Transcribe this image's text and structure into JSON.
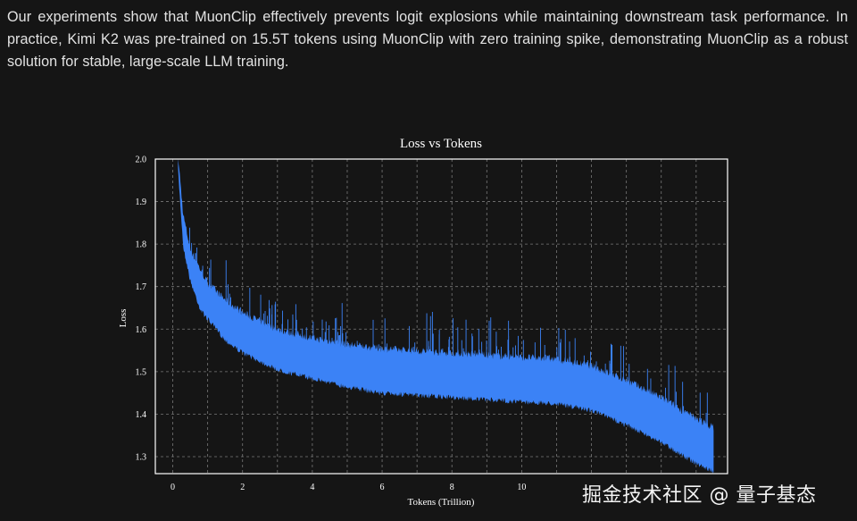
{
  "text": {
    "paragraph": "Our experiments show that MuonClip effectively prevents logit explosions while maintaining downstream task performance. In practice, Kimi K2 was pre-trained on 15.5T tokens using MuonClip with zero training spike, demonstrating MuonClip as a robust solution for stable, large-scale LLM training."
  },
  "watermark": "掘金技术社区 @ 量子基态",
  "colors": {
    "series": "#3b82f6",
    "axis": "#ffffff",
    "grid": "#9a9a9a",
    "background": "#151515"
  },
  "chart_data": {
    "type": "line",
    "title": "Loss vs Tokens",
    "xlabel": "Tokens (Trillion)",
    "ylabel": "Loss",
    "xlim": [
      -0.5,
      15.9
    ],
    "ylim": [
      1.26,
      2.0
    ],
    "xticks": [
      0,
      2,
      4,
      6,
      8,
      10
    ],
    "xtick_labels": [
      "0",
      "2",
      "4",
      "6",
      "8",
      "10"
    ],
    "yticks": [
      1.3,
      1.4,
      1.5,
      1.6,
      1.7,
      1.8,
      1.9,
      2.0
    ],
    "ytick_labels": [
      "1.3",
      "1.4",
      "1.5",
      "1.6",
      "1.7",
      "1.8",
      "1.9",
      "2.0"
    ],
    "grid": true,
    "series": [
      {
        "name": "Loss",
        "x": [
          0.15,
          0.3,
          0.5,
          0.8,
          1.0,
          1.5,
          2.0,
          3.0,
          4.0,
          5.0,
          6.0,
          7.0,
          8.0,
          9.0,
          10.0,
          11.0,
          12.0,
          13.0,
          14.0,
          15.0,
          15.5
        ],
        "lower": [
          1.98,
          1.8,
          1.72,
          1.65,
          1.63,
          1.58,
          1.55,
          1.51,
          1.49,
          1.47,
          1.455,
          1.45,
          1.445,
          1.44,
          1.435,
          1.43,
          1.415,
          1.38,
          1.34,
          1.29,
          1.27
        ],
        "upper": [
          2.0,
          1.86,
          1.78,
          1.73,
          1.7,
          1.66,
          1.63,
          1.59,
          1.57,
          1.555,
          1.545,
          1.54,
          1.535,
          1.53,
          1.525,
          1.52,
          1.505,
          1.47,
          1.43,
          1.38,
          1.36
        ]
      }
    ]
  }
}
